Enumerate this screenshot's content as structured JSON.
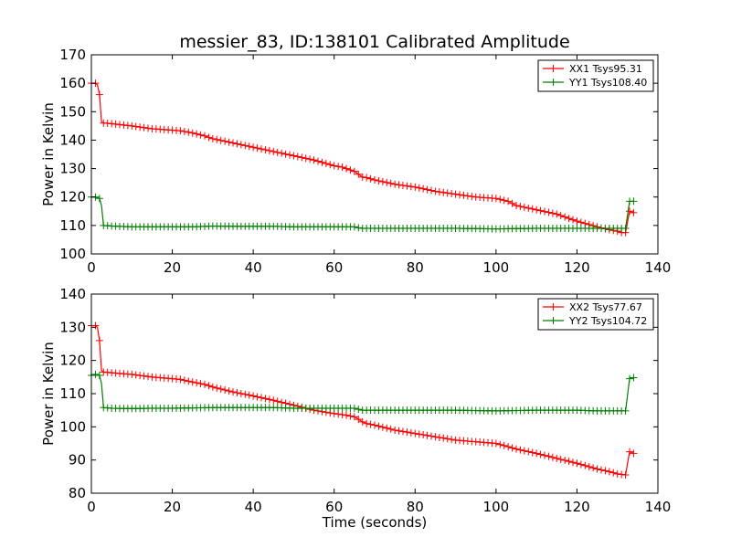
{
  "figure": {
    "title": "messier_83, ID:138101 Calibrated Amplitude"
  },
  "chart_data": [
    {
      "type": "line",
      "title": "messier_83, ID:138101 Calibrated Amplitude",
      "xlabel": "",
      "ylabel": "Power in Kelvin",
      "xlim": [
        0,
        140
      ],
      "ylim": [
        100,
        170
      ],
      "xticks": [
        0,
        20,
        40,
        60,
        80,
        100,
        120,
        140
      ],
      "yticks": [
        100,
        110,
        120,
        130,
        140,
        150,
        160,
        170
      ],
      "grid": false,
      "legend_placement": "top-right",
      "series": [
        {
          "name": "XX1 Tsys95.31",
          "color": "#ff0000",
          "marker": "+",
          "points": [
            [
              0,
              160
            ],
            [
              1,
              160
            ],
            [
              1.5,
              159.5
            ],
            [
              2,
              156
            ],
            [
              2.5,
              146.5
            ],
            [
              3,
              146
            ],
            [
              5,
              145.8
            ],
            [
              8,
              145.3
            ],
            [
              10,
              145
            ],
            [
              15,
              144
            ],
            [
              20,
              143.5
            ],
            [
              22,
              143.3
            ],
            [
              25,
              142.5
            ],
            [
              28,
              141.5
            ],
            [
              30,
              140.5
            ],
            [
              35,
              139
            ],
            [
              40,
              137.5
            ],
            [
              45,
              136
            ],
            [
              50,
              134.5
            ],
            [
              55,
              133
            ],
            [
              60,
              131
            ],
            [
              62,
              130.5
            ],
            [
              65,
              129
            ],
            [
              67,
              127
            ],
            [
              68,
              126.8
            ],
            [
              70,
              126
            ],
            [
              75,
              124.5
            ],
            [
              80,
              123.5
            ],
            [
              85,
              122
            ],
            [
              90,
              121
            ],
            [
              95,
              120
            ],
            [
              100,
              119.5
            ],
            [
              103,
              118.5
            ],
            [
              105,
              117
            ],
            [
              110,
              115.5
            ],
            [
              115,
              114
            ],
            [
              120,
              111.5
            ],
            [
              125,
              109.5
            ],
            [
              128,
              108.5
            ],
            [
              130,
              108
            ],
            [
              131,
              107.5
            ],
            [
              132,
              107.5
            ],
            [
              133,
              115
            ],
            [
              134,
              114.5
            ]
          ]
        },
        {
          "name": "YY1 Tsys108.40",
          "color": "#007f00",
          "marker": "+",
          "points": [
            [
              0,
              120
            ],
            [
              1,
              120
            ],
            [
              2,
              119.5
            ],
            [
              2.5,
              117
            ],
            [
              3,
              110
            ],
            [
              5,
              109.8
            ],
            [
              10,
              109.5
            ],
            [
              15,
              109.5
            ],
            [
              20,
              109.5
            ],
            [
              25,
              109.5
            ],
            [
              30,
              109.8
            ],
            [
              35,
              109.7
            ],
            [
              40,
              109.7
            ],
            [
              45,
              109.7
            ],
            [
              50,
              109.5
            ],
            [
              55,
              109.5
            ],
            [
              60,
              109.5
            ],
            [
              65,
              109.5
            ],
            [
              66,
              109.2
            ],
            [
              67,
              109
            ],
            [
              70,
              109
            ],
            [
              80,
              109
            ],
            [
              90,
              109
            ],
            [
              100,
              108.8
            ],
            [
              110,
              109
            ],
            [
              120,
              109
            ],
            [
              125,
              109
            ],
            [
              130,
              109
            ],
            [
              132,
              109
            ],
            [
              133,
              118.5
            ],
            [
              134,
              118.5
            ]
          ]
        }
      ]
    },
    {
      "type": "line",
      "title": "",
      "xlabel": "Time (seconds)",
      "ylabel": "Power in Kelvin",
      "xlim": [
        0,
        140
      ],
      "ylim": [
        80,
        140
      ],
      "xticks": [
        0,
        20,
        40,
        60,
        80,
        100,
        120,
        140
      ],
      "yticks": [
        80,
        90,
        100,
        110,
        120,
        130,
        140
      ],
      "grid": false,
      "legend_placement": "top-right",
      "series": [
        {
          "name": "XX2 Tsys77.67",
          "color": "#ff0000",
          "marker": "+",
          "points": [
            [
              0,
              130.5
            ],
            [
              1,
              130.5
            ],
            [
              1.5,
              130
            ],
            [
              2,
              126
            ],
            [
              2.5,
              117
            ],
            [
              3,
              116.5
            ],
            [
              5,
              116.3
            ],
            [
              8,
              116
            ],
            [
              10,
              115.8
            ],
            [
              15,
              115
            ],
            [
              20,
              114.5
            ],
            [
              22,
              114.3
            ],
            [
              25,
              113.5
            ],
            [
              28,
              112.8
            ],
            [
              30,
              112
            ],
            [
              35,
              110.5
            ],
            [
              40,
              109.3
            ],
            [
              45,
              108
            ],
            [
              50,
              106.5
            ],
            [
              55,
              105
            ],
            [
              60,
              104
            ],
            [
              63,
              103.5
            ],
            [
              65,
              103
            ],
            [
              67,
              101.5
            ],
            [
              68,
              101
            ],
            [
              70,
              100.5
            ],
            [
              75,
              99
            ],
            [
              80,
              98
            ],
            [
              85,
              97
            ],
            [
              90,
              96
            ],
            [
              95,
              95.5
            ],
            [
              100,
              95
            ],
            [
              103,
              94
            ],
            [
              105,
              93.3
            ],
            [
              110,
              92
            ],
            [
              115,
              90.5
            ],
            [
              120,
              89
            ],
            [
              125,
              87.3
            ],
            [
              128,
              86.5
            ],
            [
              130,
              85.8
            ],
            [
              132,
              85.5
            ],
            [
              133,
              92.5
            ],
            [
              134,
              92
            ]
          ]
        },
        {
          "name": "YY2 Tsys104.72",
          "color": "#007f00",
          "marker": "+",
          "points": [
            [
              0,
              115.5
            ],
            [
              1,
              115.8
            ],
            [
              2,
              115.5
            ],
            [
              2.5,
              113
            ],
            [
              3,
              105.8
            ],
            [
              5,
              105.6
            ],
            [
              10,
              105.5
            ],
            [
              15,
              105.6
            ],
            [
              20,
              105.6
            ],
            [
              25,
              105.7
            ],
            [
              30,
              105.8
            ],
            [
              35,
              105.8
            ],
            [
              40,
              105.8
            ],
            [
              45,
              105.8
            ],
            [
              50,
              105.6
            ],
            [
              55,
              105.6
            ],
            [
              60,
              105.6
            ],
            [
              65,
              105.6
            ],
            [
              66,
              105.3
            ],
            [
              67,
              105
            ],
            [
              70,
              105
            ],
            [
              80,
              105
            ],
            [
              90,
              105
            ],
            [
              100,
              104.8
            ],
            [
              110,
              105
            ],
            [
              120,
              105
            ],
            [
              125,
              104.8
            ],
            [
              130,
              104.8
            ],
            [
              132,
              104.8
            ],
            [
              133,
              114.5
            ],
            [
              134,
              114.8
            ]
          ]
        }
      ]
    }
  ]
}
